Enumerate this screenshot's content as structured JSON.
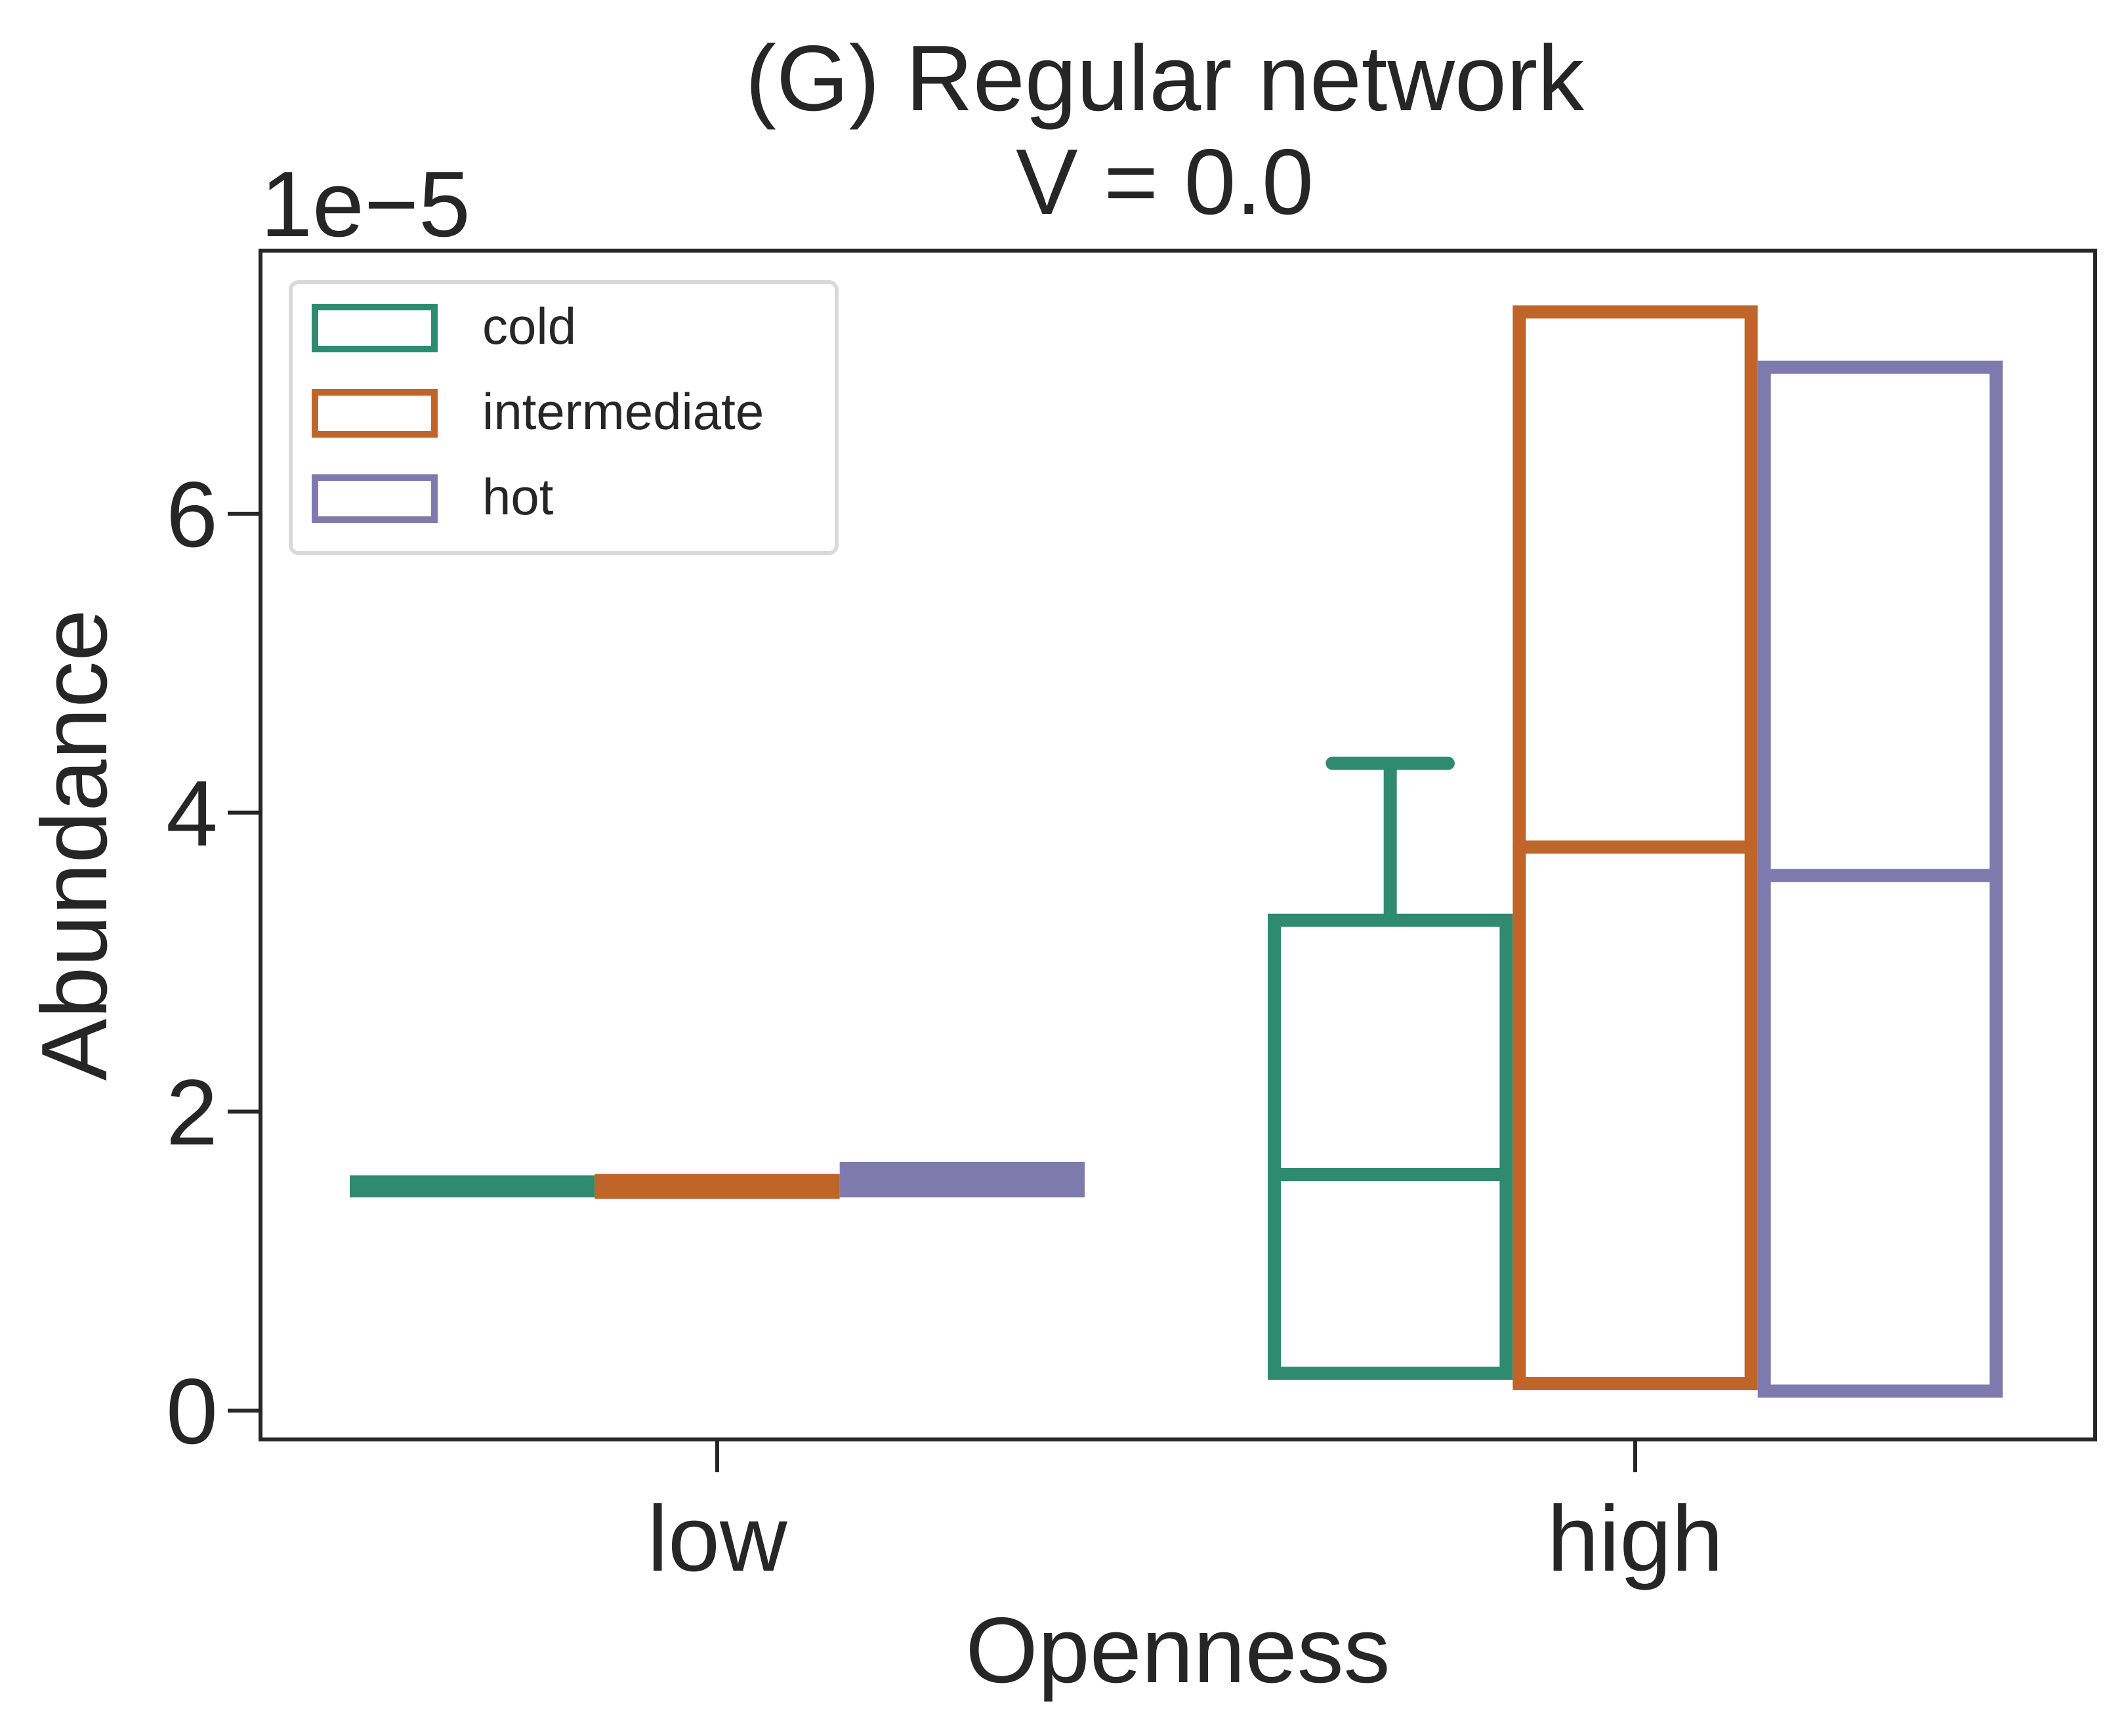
{
  "chart_data": {
    "type": "box",
    "title": "(G) Regular network",
    "subtitle": "V = 0.0",
    "xlabel": "Openness",
    "ylabel": "Abundance",
    "y_offset_label": "1e−5",
    "y_multiplier": 1e-05,
    "ylim": [
      -0.2,
      7.75
    ],
    "yticks": [
      0,
      2,
      4,
      6
    ],
    "categories": [
      "low",
      "high"
    ],
    "grid": false,
    "legend_position": "top-left",
    "series": [
      {
        "name": "cold",
        "color": "#2e8b6e",
        "boxes": [
          {
            "q1": 1.47,
            "median": 1.5,
            "q3": 1.53,
            "whisker_low": 1.47,
            "whisker_high": 1.53
          },
          {
            "q1": 0.25,
            "median": 1.58,
            "q3": 3.28,
            "whisker_low": 0.25,
            "whisker_high": 4.33
          }
        ]
      },
      {
        "name": "intermediate",
        "color": "#c0652a",
        "boxes": [
          {
            "q1": 1.46,
            "median": 1.5,
            "q3": 1.54,
            "whisker_low": 1.46,
            "whisker_high": 1.54
          },
          {
            "q1": 0.18,
            "median": 3.77,
            "q3": 7.35,
            "whisker_low": 0.18,
            "whisker_high": 7.35
          }
        ]
      },
      {
        "name": "hot",
        "color": "#7f7aad",
        "boxes": [
          {
            "q1": 1.47,
            "median": 1.55,
            "q3": 1.62,
            "whisker_low": 1.47,
            "whisker_high": 1.62
          },
          {
            "q1": 0.13,
            "median": 3.58,
            "q3": 6.98,
            "whisker_low": 0.13,
            "whisker_high": 6.98
          }
        ]
      }
    ]
  }
}
